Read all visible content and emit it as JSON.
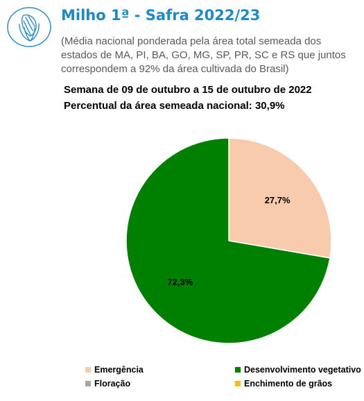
{
  "header": {
    "title": "Milho 1ª - Safra 2022/23",
    "subtitle": "(Média nacional ponderada pela área total semeada dos estados de MA, PI, BA, GO, MG, SP, PR, SC e RS que juntos correspondem a 92% da área cultivada do Brasil)",
    "week": "Semana de 09 de outubro a 15 de outubro de 2022",
    "sown_area": "Percentual da área semeada nacional: 30,9%",
    "logo_icon": "corn-icon"
  },
  "chart_data": {
    "type": "pie",
    "title": "",
    "slices": [
      {
        "name": "Emergência",
        "value": 27.7,
        "label": "27,7%",
        "color": "#f8cbad"
      },
      {
        "name": "Desenvolvimento vegetativo",
        "value": 72.3,
        "label": "72,3%",
        "color": "#008000"
      },
      {
        "name": "Floração",
        "value": 0,
        "label": "",
        "color": "#a6a6a6"
      },
      {
        "name": "Enchimento de grãos",
        "value": 0,
        "label": "",
        "color": "#ffc000"
      }
    ],
    "legend_position": "bottom"
  }
}
